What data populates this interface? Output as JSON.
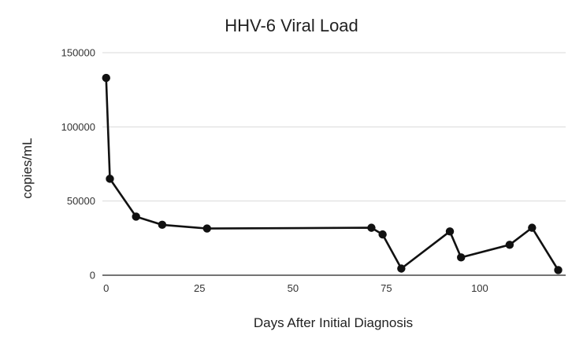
{
  "chart_data": {
    "type": "line",
    "title": "HHV-6 Viral Load",
    "xlabel": "Days After Initial Diagnosis",
    "ylabel": "copies/mL",
    "xlim": [
      -1,
      123
    ],
    "ylim": [
      0,
      150000
    ],
    "x_ticks": [
      0,
      25,
      50,
      75,
      100
    ],
    "y_ticks": [
      0,
      50000,
      100000,
      150000
    ],
    "grid": "horizontal",
    "legend": "none",
    "colors": {
      "line": "#111111",
      "grid": "#d9d9d9"
    },
    "series": [
      {
        "x": [
          0,
          1,
          8,
          15,
          27,
          71,
          74,
          79,
          92,
          95,
          108,
          114,
          121
        ],
        "y": [
          133000,
          65000,
          39500,
          34000,
          31500,
          32000,
          27500,
          4500,
          29500,
          12000,
          20500,
          32000,
          3500
        ]
      }
    ]
  }
}
